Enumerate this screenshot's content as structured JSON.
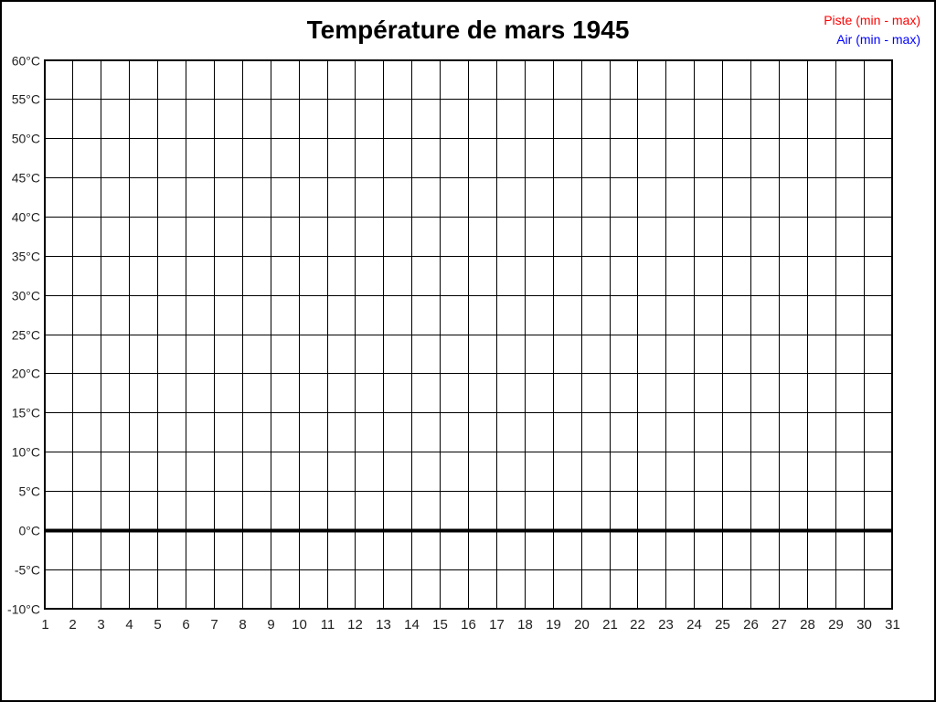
{
  "window": {
    "background": "#ffffff",
    "border_color": "#000000"
  },
  "header": {
    "title": "Température de mars 1945"
  },
  "legend": {
    "items": [
      {
        "label": "Piste (min - max)",
        "color": "#ff0000"
      },
      {
        "label": "Air (min - max)",
        "color": "#0000ff"
      }
    ]
  },
  "chart_data": {
    "type": "line",
    "title": "Température de mars 1945",
    "xlabel": "",
    "ylabel": "",
    "xlim": [
      1,
      31
    ],
    "ylim": [
      -10,
      60
    ],
    "y_tick_step": 5,
    "grid": true,
    "legend_position": "top-right",
    "axis_color": "#000000",
    "tick_label_color": "#1f1f1f",
    "zero_line": {
      "value": 0,
      "bold": true,
      "stroke_width": 4
    },
    "x_tick_labels": [
      "1",
      "2",
      "3",
      "4",
      "5",
      "6",
      "7",
      "8",
      "9",
      "10",
      "11",
      "12",
      "13",
      "14",
      "15",
      "16",
      "17",
      "18",
      "19",
      "20",
      "21",
      "22",
      "23",
      "24",
      "25",
      "26",
      "27",
      "28",
      "29",
      "30",
      "31"
    ],
    "y_tick_labels": [
      "60°C",
      "55°C",
      "50°C",
      "45°C",
      "40°C",
      "35°C",
      "30°C",
      "25°C",
      "20°C",
      "15°C",
      "10°C",
      "5°C",
      "0°C",
      "-5°C",
      "-10°C"
    ],
    "series": [
      {
        "name": "Piste (min - max)",
        "color": "#ff0000",
        "values": []
      },
      {
        "name": "Air (min - max)",
        "color": "#0000ff",
        "values": []
      }
    ]
  }
}
